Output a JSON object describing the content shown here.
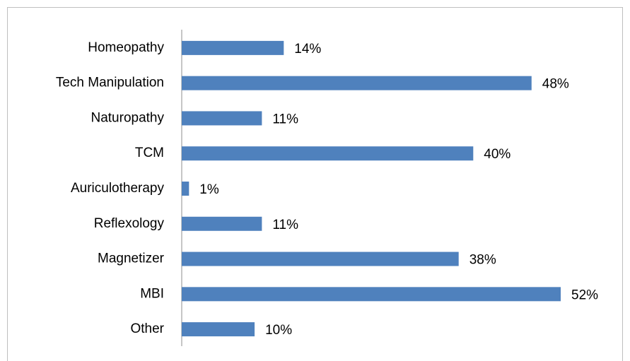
{
  "chart_data": {
    "type": "bar",
    "orientation": "horizontal",
    "categories": [
      "Homeopathy",
      "Tech Manipulation",
      "Naturopathy",
      "TCM",
      "Auriculotherapy",
      "Reflexology",
      "Magnetizer",
      "MBI",
      "Other"
    ],
    "values": [
      14,
      48,
      11,
      40,
      1,
      11,
      38,
      52,
      10
    ],
    "value_labels": [
      "14%",
      "48%",
      "11%",
      "40%",
      "1%",
      "11%",
      "38%",
      "52%",
      "10%"
    ],
    "color": "#4f81bd"
  }
}
